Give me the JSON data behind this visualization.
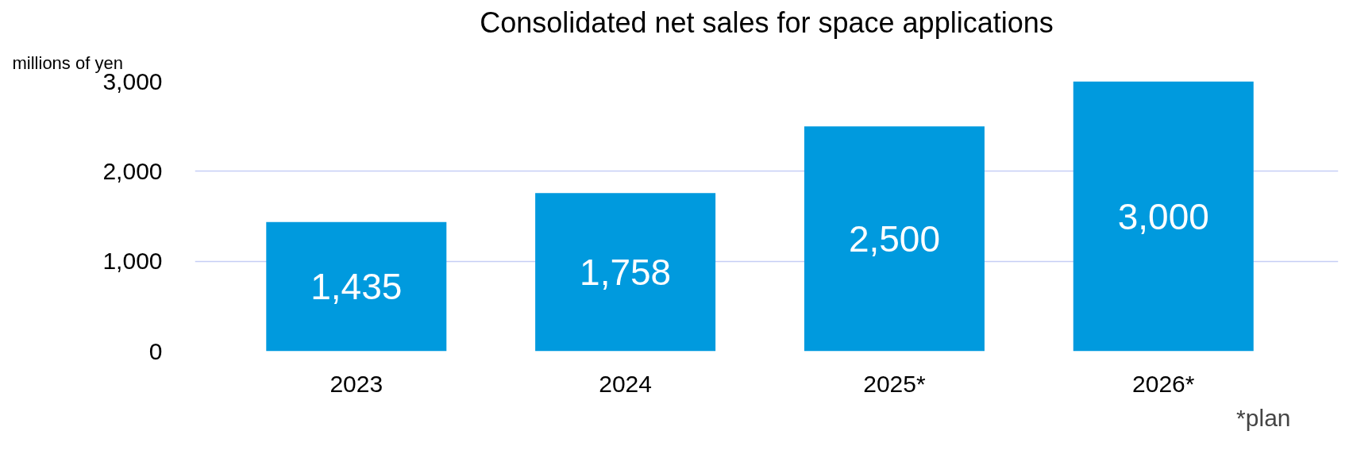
{
  "chart_data": {
    "type": "bar",
    "title": "Consolidated net sales for space applications",
    "ylabel": "millions of yen",
    "categories": [
      "2023",
      "2024",
      "2025*",
      "2026*"
    ],
    "values": [
      1435,
      1758,
      2500,
      3000
    ],
    "color": "#009ade",
    "value_labels": [
      "1,435",
      "1,758",
      "2,500",
      "3,000"
    ],
    "ylim": [
      0,
      3000
    ],
    "yticks": [
      {
        "value": 0,
        "label": "0"
      },
      {
        "value": 1000,
        "label": "1,000"
      },
      {
        "value": 2000,
        "label": "2,000"
      },
      {
        "value": 3000,
        "label": "3,000"
      }
    ],
    "grid": "y",
    "annotations": [
      "*plan"
    ]
  }
}
